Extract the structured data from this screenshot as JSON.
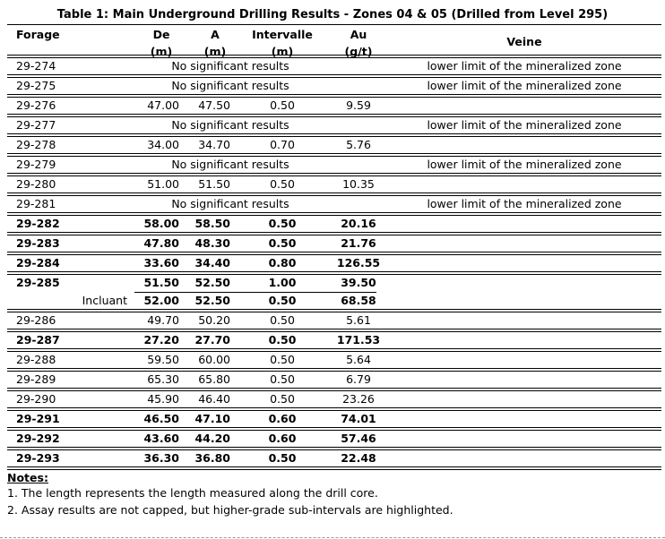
{
  "title": "Table 1: Main Underground Drilling Results - Zones 04 & 05 (Drilled from Level 295)",
  "headers": {
    "forage": "Forage",
    "de": "De",
    "de_unit": "(m)",
    "a": "A",
    "a_unit": "(m)",
    "intervalle": "Intervalle",
    "intervalle_unit": "(m)",
    "au": "Au",
    "au_unit": "(g/t)",
    "veine": "Veine"
  },
  "rows": [
    {
      "forage": "29-274",
      "nsr": "No significant results",
      "veine": "lower limit of the mineralized zone"
    },
    {
      "forage": "29-275",
      "nsr": "No significant results",
      "veine": "lower limit of the mineralized zone"
    },
    {
      "forage": "29-276",
      "de": "47.00",
      "a": "47.50",
      "int": "0.50",
      "au": "9.59"
    },
    {
      "forage": "29-277",
      "nsr": "No significant results",
      "veine": "lower limit of the mineralized zone"
    },
    {
      "forage": "29-278",
      "de": "34.00",
      "a": "34.70",
      "int": "0.70",
      "au": "5.76"
    },
    {
      "forage": "29-279",
      "nsr": "No significant results",
      "veine": "lower limit of the mineralized zone"
    },
    {
      "forage": "29-280",
      "de": "51.00",
      "a": "51.50",
      "int": "0.50",
      "au": "10.35"
    },
    {
      "forage": "29-281",
      "nsr": "No significant results",
      "veine": "lower limit of the mineralized zone"
    },
    {
      "forage": "29-282",
      "de": "58.00",
      "a": "58.50",
      "int": "0.50",
      "au": "20.16",
      "bold": true
    },
    {
      "forage": "29-283",
      "de": "47.80",
      "a": "48.30",
      "int": "0.50",
      "au": "21.76",
      "bold": true
    },
    {
      "forage": "29-284",
      "de": "33.60",
      "a": "34.40",
      "int": "0.80",
      "au": "126.55",
      "bold": true
    },
    {
      "forage": "29-285",
      "de": "51.50",
      "a": "52.50",
      "int": "1.00",
      "au": "39.50",
      "bold": true,
      "sub": {
        "label": "Incluant",
        "de": "52.00",
        "a": "52.50",
        "int": "0.50",
        "au": "68.58"
      }
    },
    {
      "forage": "29-286",
      "de": "49.70",
      "a": "50.20",
      "int": "0.50",
      "au": "5.61"
    },
    {
      "forage": "29-287",
      "de": "27.20",
      "a": "27.70",
      "int": "0.50",
      "au": "171.53",
      "bold": true
    },
    {
      "forage": "29-288",
      "de": "59.50",
      "a": "60.00",
      "int": "0.50",
      "au": "5.64"
    },
    {
      "forage": "29-289",
      "de": "65.30",
      "a": "65.80",
      "int": "0.50",
      "au": "6.79"
    },
    {
      "forage": "29-290",
      "de": "45.90",
      "a": "46.40",
      "int": "0.50",
      "au": "23.26"
    },
    {
      "forage": "29-291",
      "de": "46.50",
      "a": "47.10",
      "int": "0.60",
      "au": "74.01",
      "bold": true
    },
    {
      "forage": "29-292",
      "de": "43.60",
      "a": "44.20",
      "int": "0.60",
      "au": "57.46",
      "bold": true
    },
    {
      "forage": "29-293",
      "de": "36.30",
      "a": "36.80",
      "int": "0.50",
      "au": "22.48",
      "bold": true
    }
  ],
  "notes": {
    "heading": "Notes:",
    "items": [
      "1. The length represents the length measured along the drill core.",
      "2. Assay results are not capped, but higher-grade sub-intervals are highlighted."
    ]
  }
}
